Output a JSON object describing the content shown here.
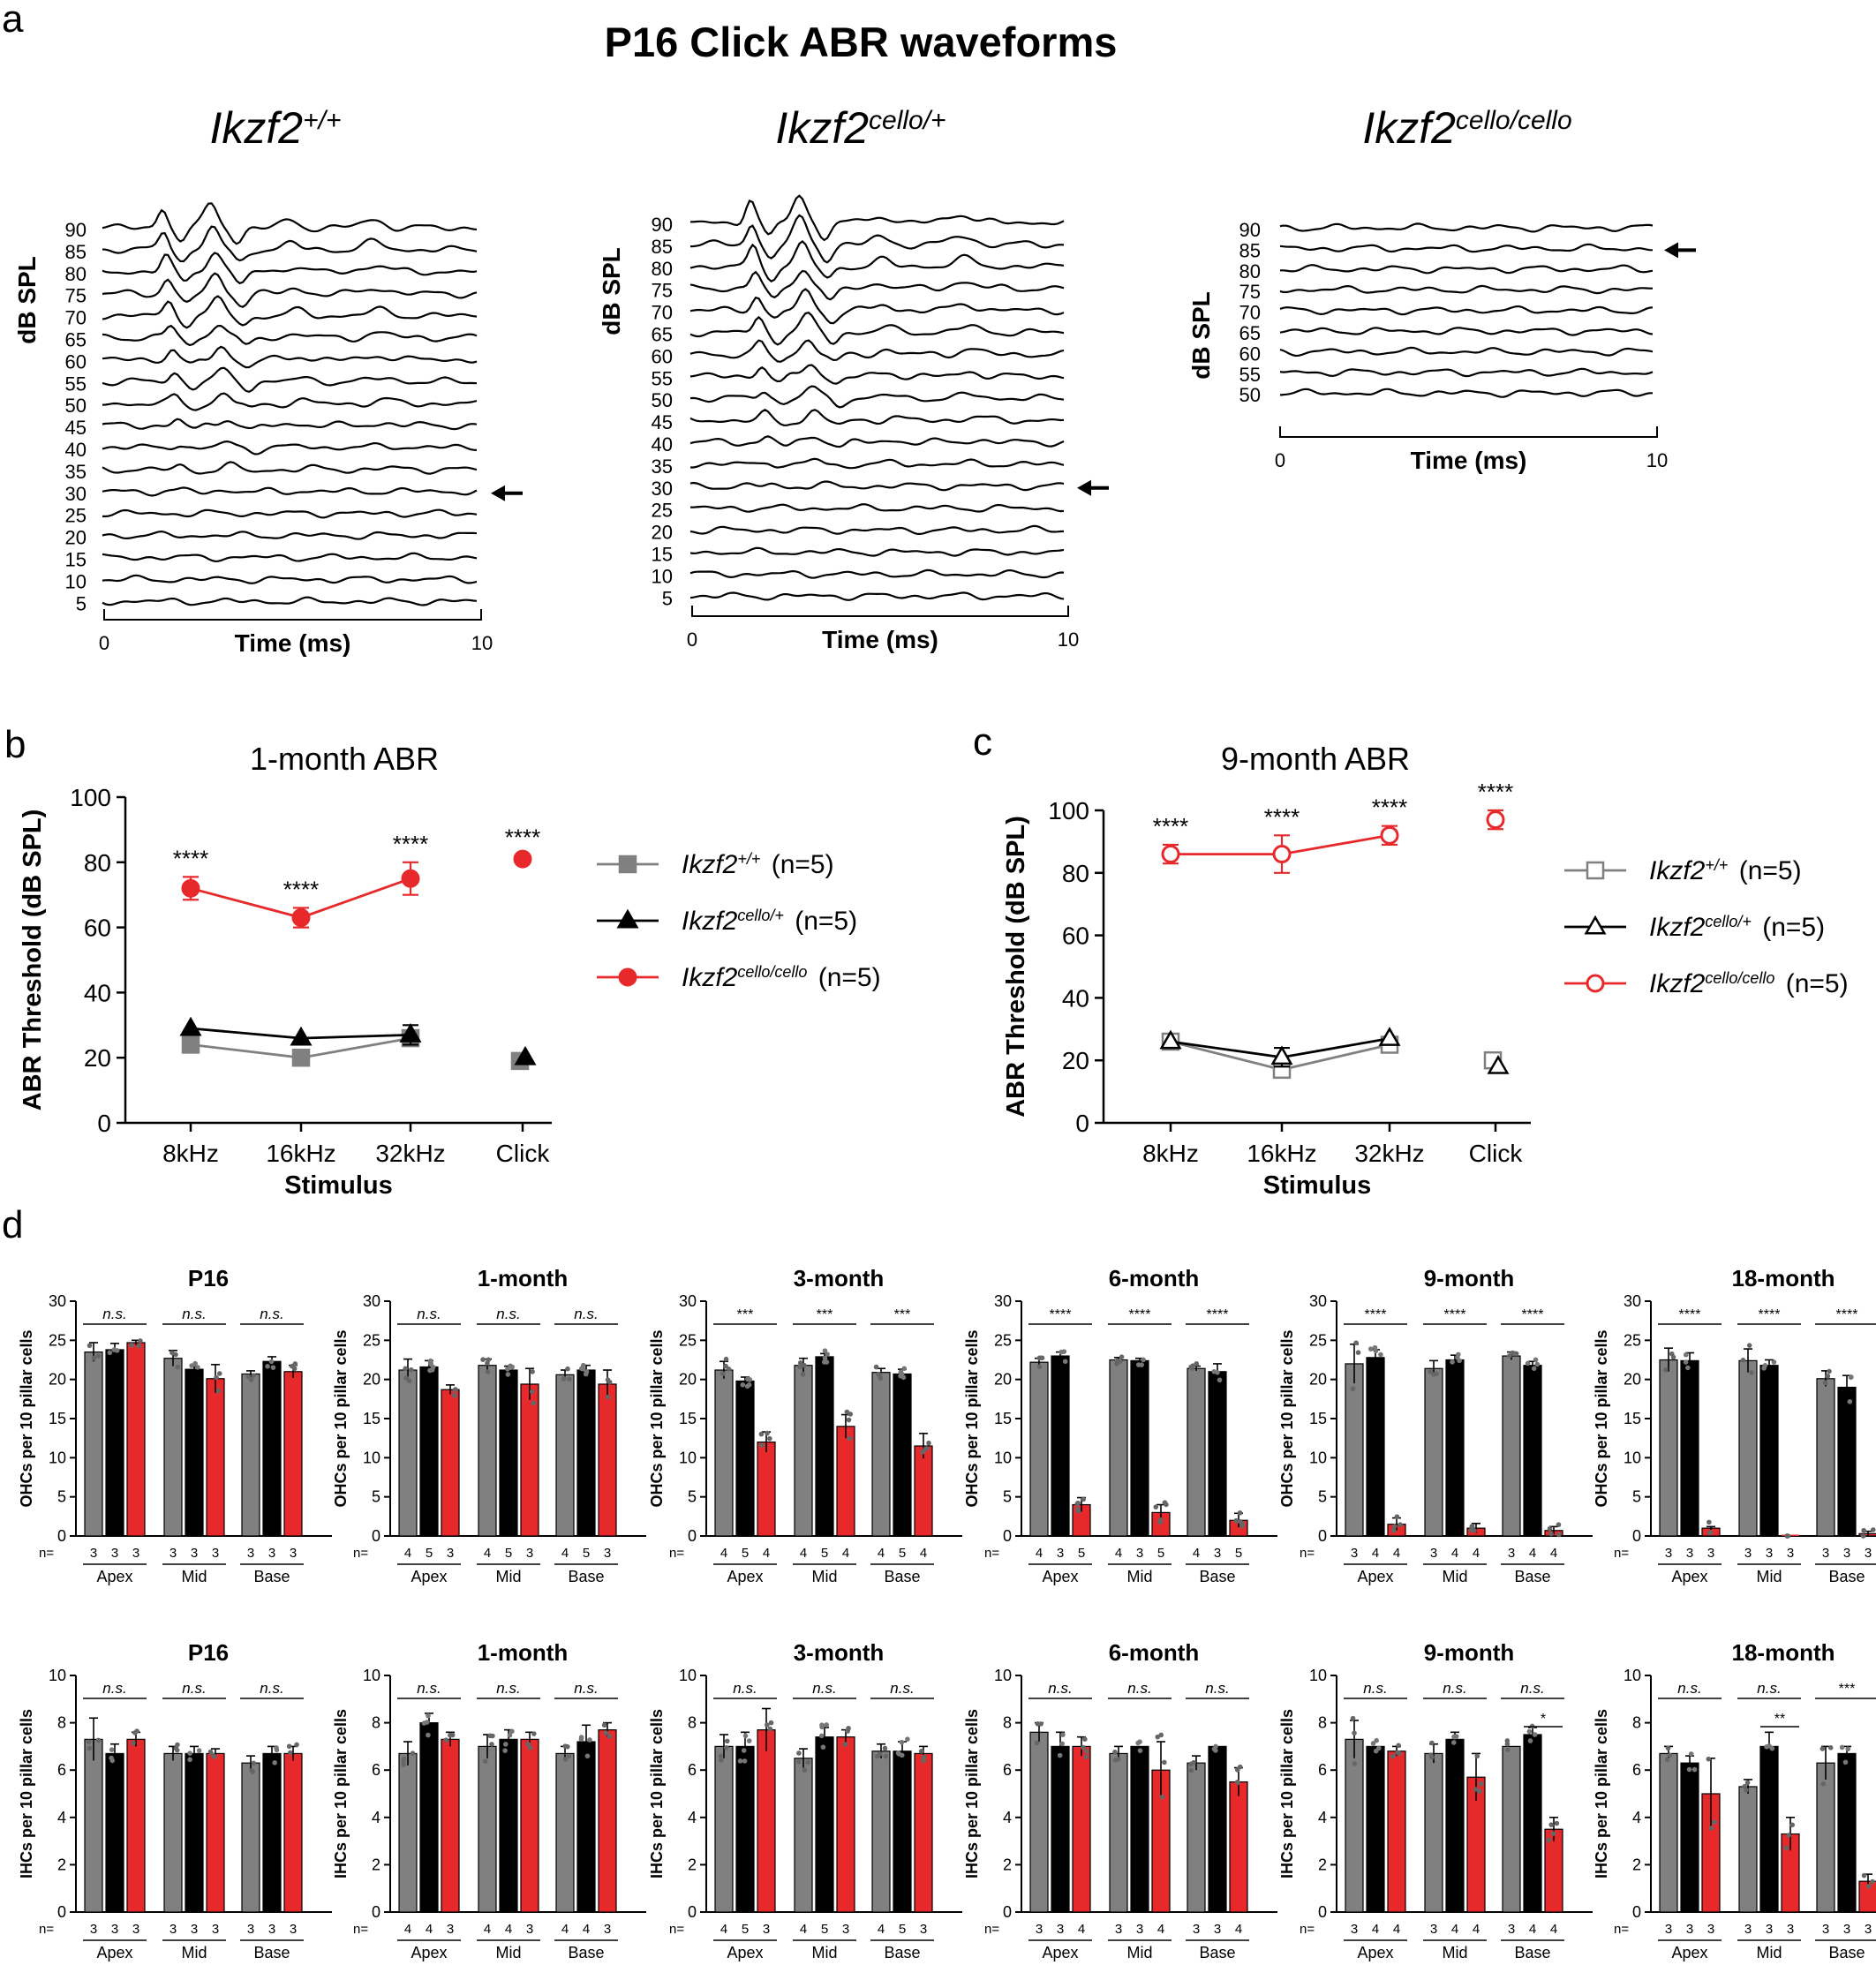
{
  "figure": {
    "colors": {
      "wt": "#808080",
      "het": "#000000",
      "hom": "#e8292b",
      "axis": "#000000"
    },
    "panel_a": {
      "letter": "a",
      "title": "P16 Click ABR waveforms",
      "plots": [
        {
          "gene": "Ikzf2",
          "allele": "+/+",
          "ylabel": "dB SPL",
          "xlabel": "Time (ms)",
          "xmin_label": "0",
          "xmax_label": "10",
          "levels": [
            "90",
            "85",
            "80",
            "75",
            "70",
            "65",
            "60",
            "55",
            "50",
            "45",
            "40",
            "35",
            "30",
            "25",
            "20",
            "15",
            "10",
            "5"
          ],
          "threshold": "30",
          "amp_scale": 1.0
        },
        {
          "gene": "Ikzf2",
          "allele": "cello/+",
          "ylabel": "dB SPL",
          "xlabel": "Time (ms)",
          "xmin_label": "0",
          "xmax_label": "10",
          "levels": [
            "90",
            "85",
            "80",
            "75",
            "70",
            "65",
            "60",
            "55",
            "50",
            "45",
            "40",
            "35",
            "30",
            "25",
            "20",
            "15",
            "10",
            "5"
          ],
          "threshold": "30",
          "amp_scale": 1.15
        },
        {
          "gene": "Ikzf2",
          "allele": "cello/cello",
          "ylabel": "dB SPL",
          "xlabel": "Time (ms)",
          "xmin_label": "0",
          "xmax_label": "10",
          "levels": [
            "90",
            "85",
            "80",
            "75",
            "70",
            "65",
            "60",
            "55",
            "50"
          ],
          "threshold": "85",
          "amp_scale": 0.0
        }
      ]
    },
    "panel_b": {
      "letter": "b",
      "title": "1-month ABR"
    },
    "panel_c": {
      "letter": "c",
      "title": "9-month ABR"
    },
    "panel_d": {
      "letter": "d"
    },
    "legend_b": [
      {
        "gene": "Ikzf2",
        "allele": "+/+",
        "n": "(n=5)"
      },
      {
        "gene": "Ikzf2",
        "allele": "cello/+",
        "n": "(n=5)"
      },
      {
        "gene": "Ikzf2",
        "allele": "cello/cello",
        "n": "(n=5)"
      }
    ],
    "legend_c": [
      {
        "gene": "Ikzf2",
        "allele": "+/+",
        "n": "(n=5)"
      },
      {
        "gene": "Ikzf2",
        "allele": "cello/+",
        "n": "(n=5)"
      },
      {
        "gene": "Ikzf2",
        "allele": "cello/cello",
        "n": "(n=5)"
      }
    ]
  },
  "chart_data": [
    {
      "panel": "b",
      "type": "line",
      "title": "1-month ABR",
      "xlabel": "Stimulus",
      "ylabel": "ABR Threshold (dB SPL)",
      "categories": [
        "8kHz",
        "16kHz",
        "32kHz",
        "Click"
      ],
      "ylim": [
        0,
        100
      ],
      "yticks": [
        0,
        20,
        40,
        60,
        80,
        100
      ],
      "connected_points": 3,
      "series": [
        {
          "name": "Ikzf2+/+ (n=5)",
          "marker": "square-filled",
          "values": [
            24,
            20,
            26,
            19
          ],
          "errors": [
            1,
            1,
            1,
            1
          ]
        },
        {
          "name": "Ikzf2cello/+ (n=5)",
          "marker": "triangle-filled",
          "values": [
            29,
            26,
            27,
            20
          ],
          "errors": [
            1,
            1,
            3,
            1
          ]
        },
        {
          "name": "Ikzf2cello/cello (n=5)",
          "marker": "circle-filled",
          "values": [
            72,
            63,
            75,
            81
          ],
          "errors": [
            3.5,
            3,
            5,
            1
          ]
        }
      ],
      "annotations": [
        "****",
        "****",
        "****",
        "****"
      ]
    },
    {
      "panel": "c",
      "type": "line",
      "title": "9-month ABR",
      "xlabel": "Stimulus",
      "ylabel": "ABR Threshold (dB SPL)",
      "categories": [
        "8kHz",
        "16kHz",
        "32kHz",
        "Click"
      ],
      "ylim": [
        0,
        100
      ],
      "yticks": [
        0,
        20,
        40,
        60,
        80,
        100
      ],
      "connected_points": 3,
      "series": [
        {
          "name": "Ikzf2+/+ (n=5)",
          "marker": "square-open",
          "values": [
            26,
            17,
            25,
            20
          ],
          "errors": [
            1,
            2,
            2,
            1
          ]
        },
        {
          "name": "Ikzf2cello/+ (n=5)",
          "marker": "triangle-open",
          "values": [
            26,
            21,
            27,
            18
          ],
          "errors": [
            1,
            3,
            1,
            1
          ]
        },
        {
          "name": "Ikzf2cello/cello (n=5)",
          "marker": "circle-open",
          "values": [
            86,
            86,
            92,
            97
          ],
          "errors": [
            3,
            6,
            3,
            3
          ]
        }
      ],
      "annotations": [
        "****",
        "****",
        "****",
        "****"
      ]
    },
    {
      "panel": "d-OHC-P16",
      "type": "bar",
      "title": "P16",
      "ylabel": "OHCs per 10 pillar cells",
      "ylim": [
        0,
        30
      ],
      "yticks": [
        0,
        5,
        10,
        15,
        20,
        25,
        30
      ],
      "groups": [
        "Apex",
        "Mid",
        "Base"
      ],
      "n": [
        [
          "3",
          "3",
          "3"
        ],
        [
          "3",
          "3",
          "3"
        ],
        [
          "3",
          "3",
          "3"
        ]
      ],
      "values": [
        [
          23.5,
          23.8,
          24.7
        ],
        [
          22.7,
          21.3,
          20.1
        ],
        [
          20.7,
          22.3,
          21.0
        ]
      ],
      "errors": [
        [
          1.2,
          0.8,
          0.3
        ],
        [
          1.0,
          0.3,
          1.8
        ],
        [
          0.4,
          0.6,
          0.8
        ]
      ],
      "sig": [
        "n.s.",
        "n.s.",
        "n.s."
      ]
    },
    {
      "panel": "d-OHC-1m",
      "type": "bar",
      "title": "1-month",
      "ylabel": "OHCs per 10 pillar cells",
      "ylim": [
        0,
        30
      ],
      "yticks": [
        0,
        5,
        10,
        15,
        20,
        25,
        30
      ],
      "groups": [
        "Apex",
        "Mid",
        "Base"
      ],
      "n": [
        [
          "4",
          "5",
          "3"
        ],
        [
          "4",
          "5",
          "3"
        ],
        [
          "4",
          "5",
          "3"
        ]
      ],
      "values": [
        [
          21.2,
          21.6,
          18.7
        ],
        [
          21.8,
          21.2,
          19.4
        ],
        [
          20.6,
          21.2,
          19.4
        ]
      ],
      "errors": [
        [
          1.4,
          0.8,
          0.6
        ],
        [
          0.8,
          0.5,
          2.0
        ],
        [
          0.6,
          0.6,
          1.8
        ]
      ],
      "sig": [
        "n.s.",
        "n.s.",
        "n.s."
      ]
    },
    {
      "panel": "d-OHC-3m",
      "type": "bar",
      "title": "3-month",
      "ylabel": "OHCs per 10 pillar cells",
      "ylim": [
        0,
        30
      ],
      "yticks": [
        0,
        5,
        10,
        15,
        20,
        25,
        30
      ],
      "groups": [
        "Apex",
        "Mid",
        "Base"
      ],
      "n": [
        [
          "4",
          "5",
          "4"
        ],
        [
          "4",
          "5",
          "4"
        ],
        [
          "4",
          "5",
          "4"
        ]
      ],
      "values": [
        [
          21.2,
          19.8,
          12.0
        ],
        [
          21.8,
          22.9,
          14.0
        ],
        [
          20.9,
          20.7,
          11.5
        ]
      ],
      "errors": [
        [
          1.1,
          0.5,
          1.3
        ],
        [
          0.9,
          0.4,
          1.5
        ],
        [
          0.5,
          0.6,
          1.6
        ]
      ],
      "sig": [
        "***",
        "***",
        "***"
      ]
    },
    {
      "panel": "d-OHC-6m",
      "type": "bar",
      "title": "6-month",
      "ylabel": "OHCs per 10 pillar cells",
      "ylim": [
        0,
        30
      ],
      "yticks": [
        0,
        5,
        10,
        15,
        20,
        25,
        30
      ],
      "groups": [
        "Apex",
        "Mid",
        "Base"
      ],
      "n": [
        [
          "4",
          "3",
          "5"
        ],
        [
          "4",
          "3",
          "5"
        ],
        [
          "4",
          "3",
          "5"
        ]
      ],
      "values": [
        [
          22.2,
          23.0,
          4.0
        ],
        [
          22.5,
          22.4,
          3.0
        ],
        [
          21.4,
          21.0,
          2.0
        ]
      ],
      "errors": [
        [
          0.5,
          0.5,
          0.9
        ],
        [
          0.3,
          0.3,
          1.0
        ],
        [
          0.3,
          1.0,
          0.9
        ]
      ],
      "sig": [
        "****",
        "****",
        "****"
      ]
    },
    {
      "panel": "d-OHC-9m",
      "type": "bar",
      "title": "9-month",
      "ylabel": "OHCs per 10 pillar cells",
      "ylim": [
        0,
        30
      ],
      "yticks": [
        0,
        5,
        10,
        15,
        20,
        25,
        30
      ],
      "groups": [
        "Apex",
        "Mid",
        "Base"
      ],
      "n": [
        [
          "3",
          "4",
          "4"
        ],
        [
          "3",
          "4",
          "4"
        ],
        [
          "3",
          "4",
          "4"
        ]
      ],
      "values": [
        [
          22.0,
          22.8,
          1.5
        ],
        [
          21.4,
          22.5,
          1.0
        ],
        [
          23.0,
          21.8,
          0.7
        ]
      ],
      "errors": [
        [
          2.5,
          1.0,
          0.8
        ],
        [
          1.0,
          0.6,
          0.6
        ],
        [
          0.5,
          0.5,
          0.5
        ]
      ],
      "sig": [
        "****",
        "****",
        "****"
      ]
    },
    {
      "panel": "d-OHC-18m",
      "type": "bar",
      "title": "18-month",
      "ylabel": "OHCs per 10 pillar cells",
      "ylim": [
        0,
        30
      ],
      "yticks": [
        0,
        5,
        10,
        15,
        20,
        25,
        30
      ],
      "groups": [
        "Apex",
        "Mid",
        "Base"
      ],
      "n": [
        [
          "3",
          "3",
          "3"
        ],
        [
          "3",
          "3",
          "3"
        ],
        [
          "3",
          "3",
          "3"
        ]
      ],
      "values": [
        [
          22.5,
          22.4,
          1.0
        ],
        [
          22.4,
          21.8,
          0.0
        ],
        [
          20.1,
          19.0,
          0.3
        ]
      ],
      "errors": [
        [
          1.5,
          1.0,
          0.2
        ],
        [
          1.5,
          0.7,
          0.0
        ],
        [
          1.0,
          1.5,
          0.3
        ]
      ],
      "sig": [
        "****",
        "****",
        "****"
      ]
    },
    {
      "panel": "d-IHC-P16",
      "type": "bar",
      "title": "P16",
      "ylabel": "IHCs per 10 pillar cells",
      "ylim": [
        0,
        10
      ],
      "yticks": [
        0,
        2,
        4,
        6,
        8,
        10
      ],
      "groups": [
        "Apex",
        "Mid",
        "Base"
      ],
      "n": [
        [
          "3",
          "3",
          "3"
        ],
        [
          "3",
          "3",
          "3"
        ],
        [
          "3",
          "3",
          "3"
        ]
      ],
      "values": [
        [
          7.3,
          6.7,
          7.3
        ],
        [
          6.7,
          6.7,
          6.7
        ],
        [
          6.3,
          6.7,
          6.7
        ]
      ],
      "errors": [
        [
          0.9,
          0.4,
          0.3
        ],
        [
          0.3,
          0.3,
          0.2
        ],
        [
          0.3,
          0.3,
          0.3
        ]
      ],
      "sig": [
        "n.s.",
        "n.s.",
        "n.s."
      ]
    },
    {
      "panel": "d-IHC-1m",
      "type": "bar",
      "title": "1-month",
      "ylabel": "IHCs per 10 pillar cells",
      "ylim": [
        0,
        10
      ],
      "yticks": [
        0,
        2,
        4,
        6,
        8,
        10
      ],
      "groups": [
        "Apex",
        "Mid",
        "Base"
      ],
      "n": [
        [
          "4",
          "4",
          "3"
        ],
        [
          "4",
          "4",
          "3"
        ],
        [
          "4",
          "4",
          "3"
        ]
      ],
      "values": [
        [
          6.7,
          8.0,
          7.3
        ],
        [
          7.0,
          7.3,
          7.3
        ],
        [
          6.7,
          7.2,
          7.7
        ]
      ],
      "errors": [
        [
          0.5,
          0.4,
          0.3
        ],
        [
          0.5,
          0.4,
          0.3
        ],
        [
          0.3,
          0.7,
          0.3
        ]
      ],
      "sig": [
        "n.s.",
        "n.s.",
        "n.s."
      ]
    },
    {
      "panel": "d-IHC-3m",
      "type": "bar",
      "title": "3-month",
      "ylabel": "IHCs per 10 pillar cells",
      "ylim": [
        0,
        10
      ],
      "yticks": [
        0,
        2,
        4,
        6,
        8,
        10
      ],
      "groups": [
        "Apex",
        "Mid",
        "Base"
      ],
      "n": [
        [
          "4",
          "5",
          "3"
        ],
        [
          "4",
          "5",
          "3"
        ],
        [
          "4",
          "5",
          "3"
        ]
      ],
      "values": [
        [
          7.0,
          7.0,
          7.7
        ],
        [
          6.5,
          7.4,
          7.4
        ],
        [
          6.8,
          6.8,
          6.7
        ]
      ],
      "errors": [
        [
          0.5,
          0.6,
          0.9
        ],
        [
          0.4,
          0.4,
          0.3
        ],
        [
          0.3,
          0.4,
          0.3
        ]
      ],
      "sig": [
        "n.s.",
        "n.s.",
        "n.s."
      ]
    },
    {
      "panel": "d-IHC-6m",
      "type": "bar",
      "title": "6-month",
      "ylabel": "IHCs per 10 pillar cells",
      "ylim": [
        0,
        10
      ],
      "yticks": [
        0,
        2,
        4,
        6,
        8,
        10
      ],
      "groups": [
        "Apex",
        "Mid",
        "Base"
      ],
      "n": [
        [
          "3",
          "3",
          "4"
        ],
        [
          "3",
          "3",
          "4"
        ],
        [
          "3",
          "3",
          "4"
        ]
      ],
      "values": [
        [
          7.6,
          7.0,
          7.0
        ],
        [
          6.7,
          7.0,
          6.0
        ],
        [
          6.3,
          7.0,
          5.5
        ]
      ],
      "errors": [
        [
          0.4,
          0.6,
          0.4
        ],
        [
          0.3,
          0.0,
          1.2
        ],
        [
          0.3,
          0.0,
          0.6
        ]
      ],
      "sig": [
        "n.s.",
        "n.s.",
        "n.s."
      ]
    },
    {
      "panel": "d-IHC-9m",
      "type": "bar",
      "title": "9-month",
      "ylabel": "IHCs per 10 pillar cells",
      "ylim": [
        0,
        10
      ],
      "yticks": [
        0,
        2,
        4,
        6,
        8,
        10
      ],
      "groups": [
        "Apex",
        "Mid",
        "Base"
      ],
      "n": [
        [
          "3",
          "4",
          "4"
        ],
        [
          "3",
          "4",
          "4"
        ],
        [
          "3",
          "4",
          "4"
        ]
      ],
      "values": [
        [
          7.3,
          7.0,
          6.8
        ],
        [
          6.7,
          7.3,
          5.7
        ],
        [
          7.0,
          7.5,
          3.5
        ]
      ],
      "errors": [
        [
          0.8,
          0.0,
          0.2
        ],
        [
          0.4,
          0.3,
          1.0
        ],
        [
          0.0,
          0.3,
          0.5
        ]
      ],
      "sig": [
        "n.s.",
        "n.s.",
        "n.s."
      ],
      "extra_sig": [
        {
          "text": "*",
          "group": 2,
          "from": 1,
          "to": 2
        }
      ]
    },
    {
      "panel": "d-IHC-18m",
      "type": "bar",
      "title": "18-month",
      "ylabel": "IHCs per 10 pillar cells",
      "ylim": [
        0,
        10
      ],
      "yticks": [
        0,
        2,
        4,
        6,
        8,
        10
      ],
      "groups": [
        "Apex",
        "Mid",
        "Base"
      ],
      "n": [
        [
          "3",
          "3",
          "3"
        ],
        [
          "3",
          "3",
          "3"
        ],
        [
          "3",
          "3",
          "3"
        ]
      ],
      "values": [
        [
          6.7,
          6.3,
          5.0
        ],
        [
          5.3,
          7.0,
          3.3
        ],
        [
          6.3,
          6.7,
          1.3
        ]
      ],
      "errors": [
        [
          0.3,
          0.3,
          1.5
        ],
        [
          0.3,
          0.6,
          0.7
        ],
        [
          0.7,
          0.3,
          0.3
        ]
      ],
      "sig": [
        "n.s.",
        "n.s.",
        "***"
      ],
      "extra_sig": [
        {
          "text": "**",
          "group": 1,
          "from": 1,
          "to": 2
        }
      ]
    }
  ]
}
